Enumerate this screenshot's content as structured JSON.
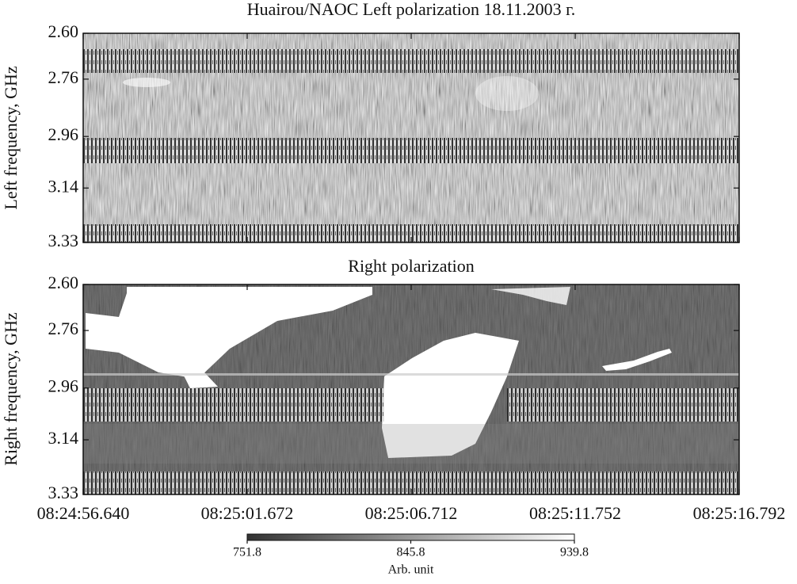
{
  "chart_data": [
    {
      "type": "heatmap",
      "title": "Huairou/NAOC Left polarization 18.11.2003 г.",
      "y_label": "Left frequency, GHz",
      "ylim": [
        2.6,
        3.33
      ],
      "y_axis_inverted": true,
      "yticks": [
        {
          "value": 2.6,
          "label": "2.60"
        },
        2.76,
        2.96,
        3.14,
        3.33
      ]
    },
    {
      "type": "heatmap",
      "title": "Right polarization",
      "y_label": "Right frequency, GHz",
      "ylim": [
        2.6,
        3.33
      ],
      "y_axis_inverted": true,
      "yticks": [
        {
          "value": 2.6,
          "label": "2.60"
        },
        2.76,
        2.96,
        3.14,
        3.33
      ],
      "xticks": [
        "08:24:56.640",
        "08:25:01.672",
        "08:25:06.712",
        "08:25:11.752",
        "08:25:16.792"
      ],
      "colorbar": {
        "lim": [
          751.8,
          939.8
        ],
        "ticks": [
          751.8,
          845.8,
          939.8
        ],
        "label": "Arb. unit",
        "colors": [
          "#333333",
          "#ffffff"
        ]
      }
    }
  ]
}
